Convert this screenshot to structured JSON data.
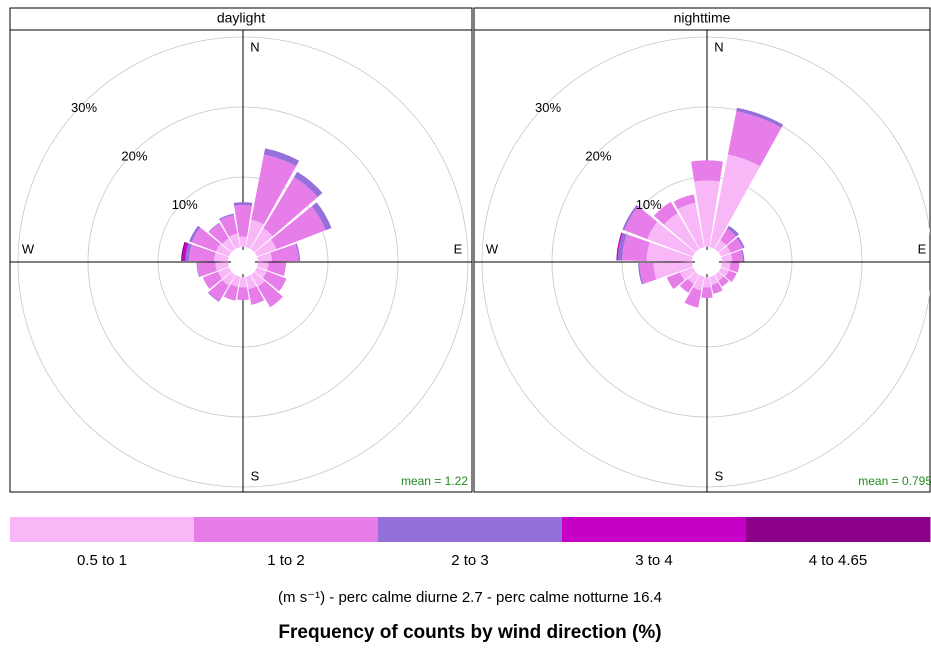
{
  "chart_data": {
    "type": "windrose",
    "title": "Frequency of counts by wind direction (%)",
    "subtitle": "(m s⁻¹)  -  perc calme diurne 2.7  -  perc calme notturne 16.4",
    "directions": [
      0,
      20,
      40,
      60,
      80,
      100,
      120,
      140,
      160,
      180,
      200,
      220,
      240,
      260,
      280,
      300,
      320,
      340
    ],
    "compass": [
      "N",
      "E",
      "S",
      "W"
    ],
    "rlim": [
      0,
      30
    ],
    "rticks": [
      {
        "value": 10,
        "label": "10%"
      },
      {
        "value": 20,
        "label": "20%"
      },
      {
        "value": 30,
        "label": "30%"
      }
    ],
    "series": [
      {
        "name": "0.5 to 1",
        "color": "#f8b8f8"
      },
      {
        "name": "1 to 2",
        "color": "#e77de9"
      },
      {
        "name": "2 to 3",
        "color": "#9670da"
      },
      {
        "name": "3 to 4",
        "color": "#c700c7"
      },
      {
        "name": "4 to 4.65",
        "color": "#8b008b"
      }
    ],
    "panels": [
      {
        "title": "daylight",
        "annotation": "mean = 1.22",
        "values": [
          [
            1.5,
            4,
            3.5,
            3,
            2,
            1.5,
            1.5,
            2,
            1.8,
            1.5,
            1.5,
            1.8,
            1.7,
            1.8,
            2,
            2,
            1.8,
            2
          ],
          [
            4.5,
            9.5,
            8.5,
            7.5,
            3.8,
            2.5,
            3,
            3.4,
            2.3,
            1.8,
            2,
            2.6,
            2.3,
            2.6,
            3.6,
            3.7,
            2.5,
            2.7
          ],
          [
            0.4,
            0.9,
            0.9,
            0.9,
            0.2,
            0,
            0,
            0,
            0,
            0,
            0,
            0.1,
            0,
            0.1,
            0.5,
            0.4,
            0.1,
            0.2
          ],
          [
            0,
            0,
            0,
            0,
            0,
            0,
            0,
            0,
            0,
            0,
            0,
            0,
            0,
            0,
            0.4,
            0,
            0,
            0
          ],
          [
            0,
            0,
            0,
            0,
            0,
            0,
            0,
            0,
            0,
            0,
            0,
            0,
            0,
            0,
            0.2,
            0,
            0,
            0
          ]
        ]
      },
      {
        "title": "nighttime",
        "annotation": "mean = 0.795",
        "values": [
          [
            9.5,
            13.5,
            1.5,
            1.5,
            1.5,
            1.2,
            1.2,
            1,
            1.2,
            1.5,
            2,
            1.5,
            2,
            5.5,
            6.5,
            7,
            6,
            6.5
          ],
          [
            2.9,
            6.3,
            1.9,
            1.8,
            1.5,
            1.3,
            1.2,
            1,
            1.3,
            1.5,
            2.5,
            1.5,
            2,
            2,
            3.5,
            3.5,
            1.9,
            1.2
          ],
          [
            0,
            0.5,
            0.5,
            0.3,
            0.2,
            0,
            0,
            0,
            0,
            0,
            0,
            0,
            0,
            0.2,
            0.6,
            0.3,
            0,
            0
          ],
          [
            0,
            0,
            0,
            0,
            0,
            0,
            0,
            0,
            0,
            0,
            0,
            0,
            0,
            0,
            0.2,
            0,
            0,
            0
          ],
          [
            0,
            0,
            0,
            0,
            0,
            0,
            0,
            0,
            0,
            0,
            0,
            0,
            0,
            0,
            0,
            0,
            0,
            0
          ]
        ]
      }
    ]
  }
}
